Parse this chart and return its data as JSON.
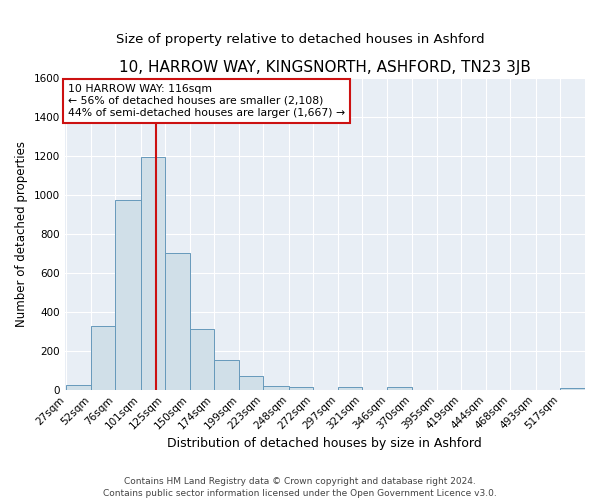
{
  "title": "10, HARROW WAY, KINGSNORTH, ASHFORD, TN23 3JB",
  "subtitle": "Size of property relative to detached houses in Ashford",
  "xlabel": "Distribution of detached houses by size in Ashford",
  "ylabel": "Number of detached properties",
  "bar_labels": [
    "27sqm",
    "52sqm",
    "76sqm",
    "101sqm",
    "125sqm",
    "150sqm",
    "174sqm",
    "199sqm",
    "223sqm",
    "248sqm",
    "272sqm",
    "297sqm",
    "321sqm",
    "346sqm",
    "370sqm",
    "395sqm",
    "419sqm",
    "444sqm",
    "468sqm",
    "493sqm",
    "517sqm"
  ],
  "bar_values": [
    25,
    325,
    970,
    1195,
    700,
    310,
    150,
    70,
    20,
    15,
    0,
    15,
    0,
    15,
    0,
    0,
    0,
    0,
    0,
    0,
    10
  ],
  "bar_color": "#d0dfe8",
  "bar_edge_color": "#6699bb",
  "vline_color": "#cc1111",
  "vline_x_data": 116,
  "bin_edges": [
    27,
    52,
    76,
    101,
    125,
    150,
    174,
    199,
    223,
    248,
    272,
    297,
    321,
    346,
    370,
    395,
    419,
    444,
    468,
    493,
    517,
    542
  ],
  "property_sqm": 116,
  "annotation_title": "10 HARROW WAY: 116sqm",
  "annotation_line1": "← 56% of detached houses are smaller (2,108)",
  "annotation_line2": "44% of semi-detached houses are larger (1,667) →",
  "annotation_box_color": "#ffffff",
  "annotation_box_edge_color": "#cc1111",
  "ylim": [
    0,
    1600
  ],
  "yticks": [
    0,
    200,
    400,
    600,
    800,
    1000,
    1200,
    1400,
    1600
  ],
  "background_color": "#e8eef5",
  "grid_color": "#ffffff",
  "footer_line1": "Contains HM Land Registry data © Crown copyright and database right 2024.",
  "footer_line2": "Contains public sector information licensed under the Open Government Licence v3.0.",
  "title_fontsize": 11,
  "subtitle_fontsize": 9.5,
  "xlabel_fontsize": 9,
  "ylabel_fontsize": 8.5,
  "tick_fontsize": 7.5,
  "footer_fontsize": 6.5,
  "annotation_fontsize": 7.8
}
